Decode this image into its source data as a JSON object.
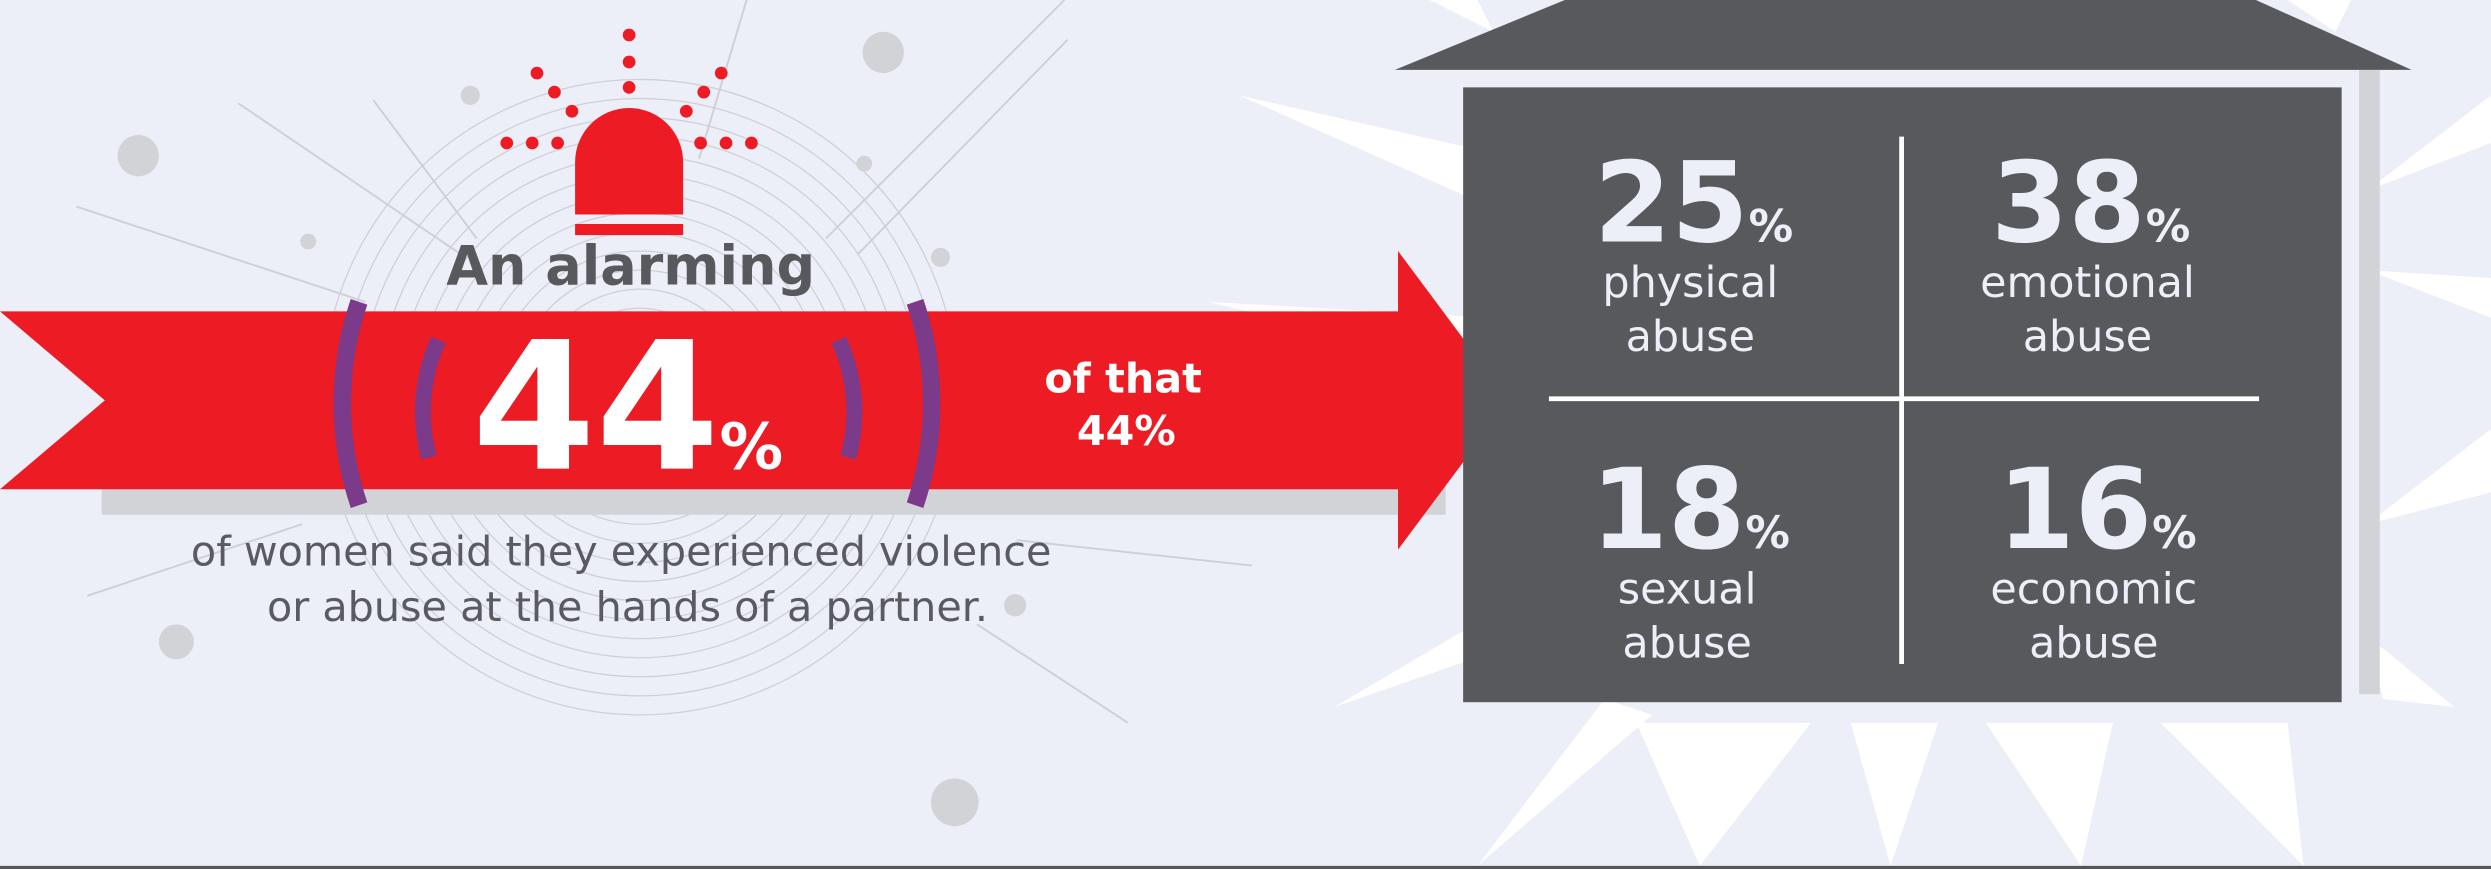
{
  "intro": "An alarming",
  "headline": {
    "number": "44",
    "unit": "%"
  },
  "caption": [
    "of women said they experienced violence",
    "or abuse at the hands of a partner."
  ],
  "connector": [
    "of that",
    "44%"
  ],
  "breakdown": [
    {
      "number": "25",
      "unit": "%",
      "label": [
        "physical",
        "abuse"
      ]
    },
    {
      "number": "38",
      "unit": "%",
      "label": [
        "emotional",
        "abuse"
      ]
    },
    {
      "number": "18",
      "unit": "%",
      "label": [
        "sexual",
        "abuse"
      ]
    },
    {
      "number": "16",
      "unit": "%",
      "label": [
        "economic",
        "abuse"
      ]
    }
  ]
}
